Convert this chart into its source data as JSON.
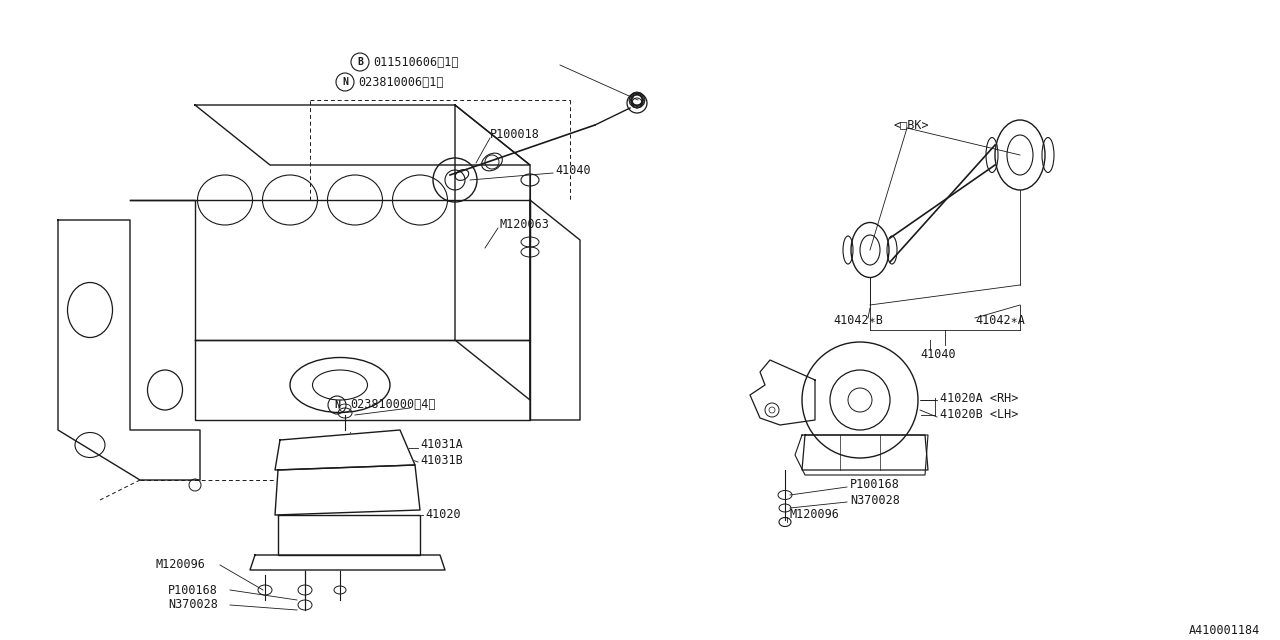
{
  "bg_color": "#ffffff",
  "line_color": "#1a1a1a",
  "text_color": "#1a1a1a",
  "part_number": "A410001184",
  "fig_width": 12.8,
  "fig_height": 6.4,
  "dpi": 100,
  "labels": {
    "b_label": "011510606（1）",
    "n1_label": "023810006（1）",
    "p100018": "P100018",
    "41040_upper": "41040",
    "m120063": "M120063",
    "n2_label": "023810000（4）",
    "41031A": "41031A",
    "41031B": "41031B",
    "41020_lower": "41020",
    "m120096_left": "M120096",
    "p100168_left": "P100168",
    "n370028_left": "N370028",
    "bk_label": "<□BK>",
    "41042B": "41042∗B",
    "41042A": "41042∗A",
    "41040_tr": "41040",
    "41020A": "41020A <RH>",
    "41020B": "41020B <LH>",
    "p100168_br": "P100168",
    "n370028_br": "N370028",
    "m120096_br": "M120096"
  }
}
